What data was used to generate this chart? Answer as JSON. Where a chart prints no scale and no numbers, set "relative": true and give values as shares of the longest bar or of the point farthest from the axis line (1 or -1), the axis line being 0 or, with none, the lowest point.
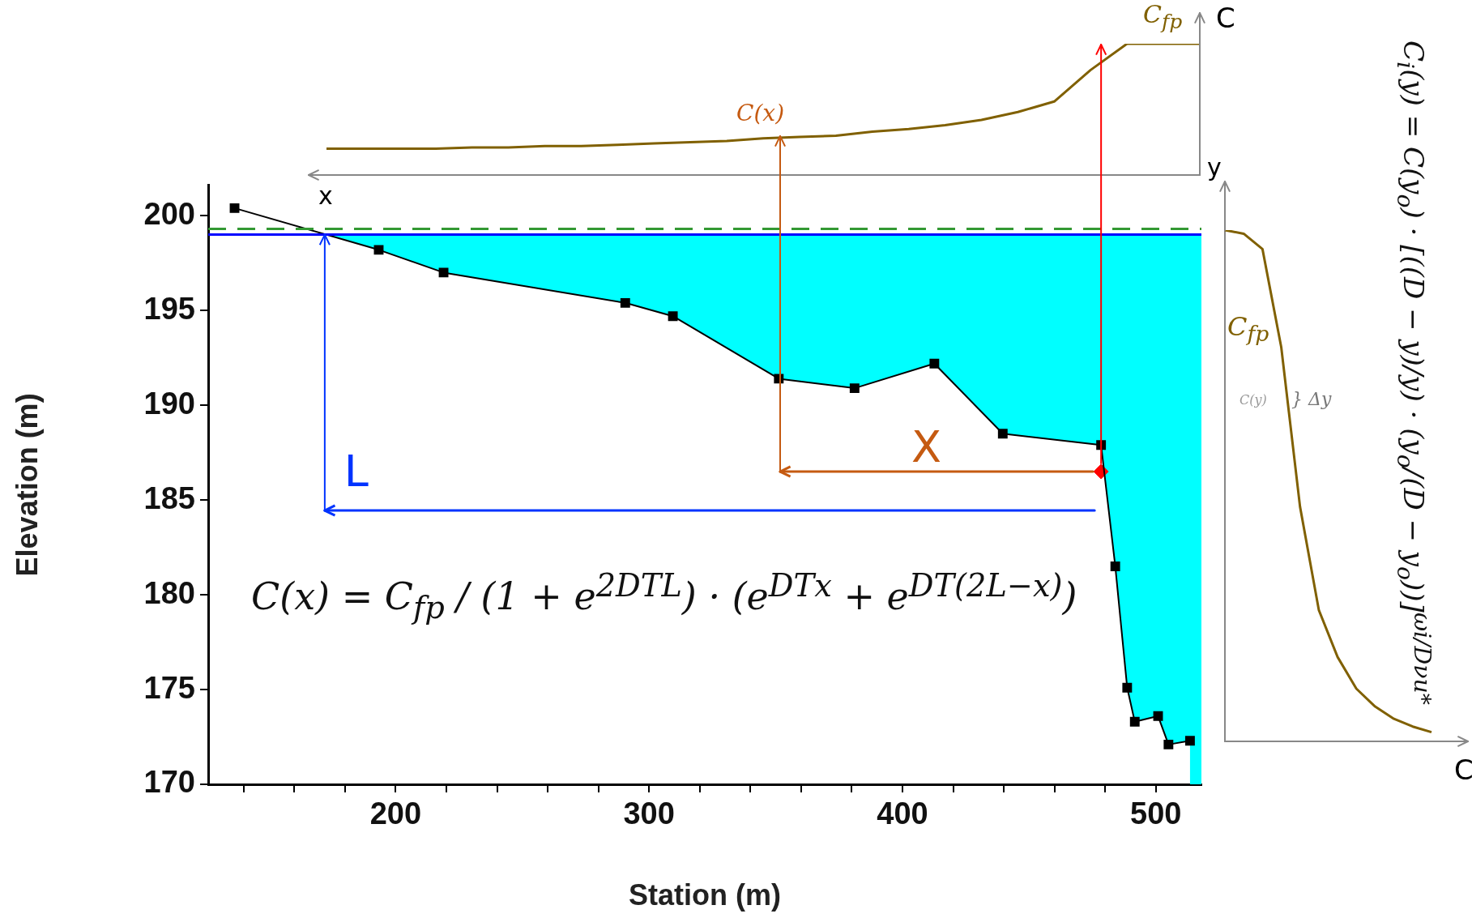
{
  "chart_data": [
    {
      "type": "line",
      "relative": true,
      "xlabel": "x",
      "ylabel": "C",
      "categories": [
        null,
        null,
        null,
        null,
        null,
        null,
        null,
        null,
        null,
        null,
        null,
        null,
        null,
        null,
        null,
        null,
        null,
        null,
        null,
        null,
        null,
        null,
        null,
        null,
        null
      ],
      "series": [
        {
          "color": "#806000",
          "values": [
            0.2,
            0.2,
            0.2,
            0.2,
            0.21,
            0.21,
            0.22,
            0.22,
            0.23,
            0.24,
            0.25,
            0.26,
            0.28,
            0.29,
            0.3,
            0.33,
            0.35,
            0.38,
            0.42,
            0.48,
            0.56,
            0.8,
            1,
            1,
            1
          ]
        }
      ],
      "marker": "none",
      "annotations": [
        "C$_{fp}$",
        "C(x)"
      ]
    },
    {
      "type": "line",
      "xlabel": "Station (m)",
      "ylabel": "Elevation (m)",
      "xlim": [
        126,
        518
      ],
      "ylim": [
        170,
        201.6
      ],
      "xticks": [
        {
          "value": 140,
          "label": null
        },
        {
          "value": 160,
          "label": null
        },
        {
          "value": 180,
          "label": null
        },
        200,
        {
          "value": 220,
          "label": null
        },
        {
          "value": 240,
          "label": null
        },
        {
          "value": 260,
          "label": null
        },
        {
          "value": 280,
          "label": null
        },
        300,
        {
          "value": 320,
          "label": null
        },
        {
          "value": 340,
          "label": null
        },
        {
          "value": 360,
          "label": null
        },
        {
          "value": 380,
          "label": null
        },
        400,
        {
          "value": 420,
          "label": null
        },
        {
          "value": 440,
          "label": null
        },
        {
          "value": 460,
          "label": null
        },
        {
          "value": 480,
          "label": null
        },
        500
      ],
      "yticks": [
        170,
        175,
        180,
        185,
        190,
        195,
        200
      ],
      "series": [
        {
          "color": "#000000",
          "marker": "square",
          "x": [
            136.4,
            193.3,
            218.9,
            290.6,
            309.4,
            351.2,
            381.1,
            412.6,
            439.6,
            478.4,
            484,
            488.7,
            491.7,
            500.9,
            505,
            513.5
          ],
          "values": [
            200.4,
            198.2,
            197,
            195.4,
            194.7,
            191.4,
            190.9,
            192.2,
            188.5,
            187.9,
            181.5,
            175.1,
            173.3,
            173.6,
            172.1,
            172.3
          ]
        },
        {
          "type": "area",
          "color": "#00ffff",
          "marker": "none",
          "x": [
            172,
            518
          ],
          "values": [
            199,
            199
          ]
        },
        {
          "type": "scatter",
          "color": "#ff0000",
          "marker": "diamond",
          "x": [
            478.4
          ],
          "values": [
            186.5
          ]
        }
      ],
      "grid": false,
      "ref_lines": [
        {
          "axis": "y",
          "value": 199.3,
          "color": "#339933",
          "line_style": "dashed"
        },
        {
          "axis": "y",
          "value": 199,
          "color": "#0000ff",
          "line_style": "solid"
        }
      ],
      "annotations": [
        {
          "text": "L",
          "x": 172,
          "y": 199
        },
        "X",
        "C(x) = C$_{fp}$ / (1 + e$^{2DTL}$) · (e$^{DTx}$ + e$^{DT(2L−x)}$)"
      ]
    },
    {
      "type": "line",
      "relative": true,
      "xlabel": "C",
      "ylabel": "y",
      "categories": [
        null,
        null,
        null,
        null,
        null,
        null,
        null,
        null,
        null,
        null,
        null,
        null
      ],
      "series": [
        {
          "color": "#806000",
          "values": [
            1,
            0.993,
            0.963,
            0.771,
            0.459,
            0.257,
            0.165,
            0.103,
            0.068,
            0.044,
            0.029,
            0.018
          ]
        }
      ],
      "marker": "none",
      "annotations": [
        "C$_{fp}$",
        "C(y)",
        "} Δy",
        "C$_{i}$(y) = C(y$_{o}$) · [((D − y)/y) · (y$_{o}$/(D − y$_{o}$))]$^{ωi/Dνu*}$"
      ]
    }
  ]
}
